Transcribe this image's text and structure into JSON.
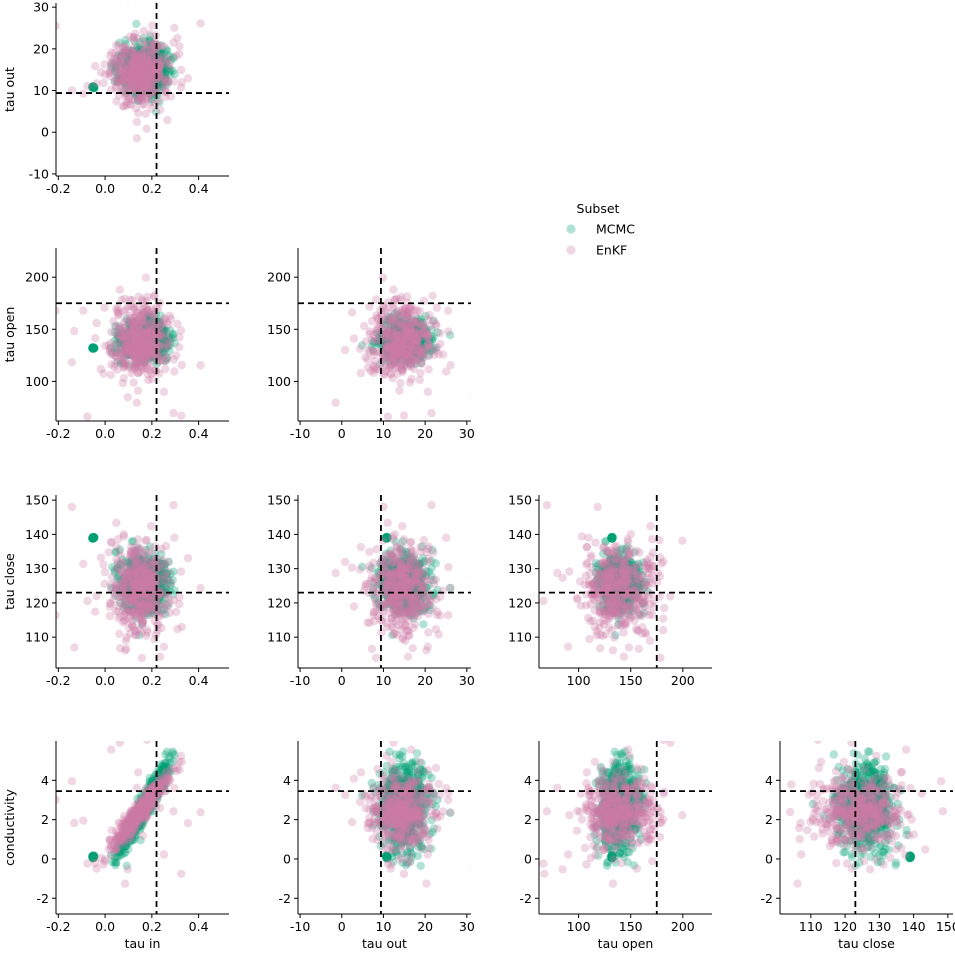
{
  "chart_data": {
    "type": "scatter",
    "layout": "pairplot-lower-triangle",
    "variables": [
      "tau in",
      "tau out",
      "tau open",
      "tau close",
      "conductivity"
    ],
    "ranges": {
      "tau in": [
        -0.21,
        0.53
      ],
      "tau out": [
        -10.5,
        31
      ],
      "tau open": [
        62,
        228
      ],
      "tau close": [
        101,
        151.5
      ],
      "conductivity": [
        -2.8,
        6
      ]
    },
    "ticks": {
      "tau in": [
        -0.2,
        0.0,
        0.2,
        0.4
      ],
      "tau out": [
        -10,
        0,
        10,
        20,
        30
      ],
      "tau open": [
        100,
        150,
        200
      ],
      "tau close": [
        110,
        120,
        130,
        140,
        150
      ],
      "conductivity": [
        -2,
        0,
        2,
        4
      ]
    },
    "panels": [
      {
        "x": "tau in",
        "y": "tau out",
        "ref_x": 0.22,
        "ref_y": 9.4
      },
      {
        "x": "tau in",
        "y": "tau open",
        "ref_x": 0.22,
        "ref_y": 175
      },
      {
        "x": "tau out",
        "y": "tau open",
        "ref_x": 9.4,
        "ref_y": 175
      },
      {
        "x": "tau in",
        "y": "tau close",
        "ref_x": 0.22,
        "ref_y": 123
      },
      {
        "x": "tau out",
        "y": "tau close",
        "ref_x": 9.4,
        "ref_y": 123
      },
      {
        "x": "tau open",
        "y": "tau close",
        "ref_x": 175,
        "ref_y": 123
      },
      {
        "x": "tau in",
        "y": "conductivity",
        "ref_x": 0.22,
        "ref_y": 3.45
      },
      {
        "x": "tau out",
        "y": "conductivity",
        "ref_x": 9.4,
        "ref_y": 3.45
      },
      {
        "x": "tau open",
        "y": "conductivity",
        "ref_x": 175,
        "ref_y": 3.45
      },
      {
        "x": "tau close",
        "y": "conductivity",
        "ref_x": 123,
        "ref_y": 3.45
      }
    ],
    "reference_values": {
      "tau in": 0.22,
      "tau out": 9.4,
      "tau open": 175,
      "tau close": 123,
      "conductivity": 3.45
    },
    "series": [
      {
        "name": "MCMC",
        "color": "#009e73",
        "opacity": 0.3,
        "mean": {
          "tau in": 0.17,
          "tau out": 15.0,
          "tau open": 140,
          "tau close": 126,
          "conductivity": 2.7
        },
        "sd": {
          "tau in": 0.05,
          "tau out": 2.8,
          "tau open": 9,
          "tau close": 4,
          "conductivity": 1.1
        },
        "outlier_cluster": {
          "tau in": -0.05,
          "tau out": 10.8,
          "tau open": 132,
          "tau close": 139,
          "conductivity": 0.1
        }
      },
      {
        "name": "EnKF",
        "color": "#cc79a7",
        "opacity": 0.3,
        "mean": {
          "tau in": 0.15,
          "tau out": 14.5,
          "tau open": 138,
          "tau close": 124,
          "conductivity": 2.4
        },
        "sd": {
          "tau in": 0.06,
          "tau out": 4.0,
          "tau open": 17,
          "tau close": 6.5,
          "conductivity": 0.9
        }
      }
    ],
    "legend": {
      "title": "Subset",
      "entries": [
        "MCMC",
        "EnKF"
      ],
      "placement": "center-right"
    },
    "grid": false
  }
}
